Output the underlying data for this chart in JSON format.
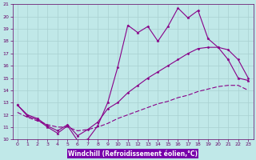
{
  "title": "",
  "xlabel": "Windchill (Refroidissement éolien,°C)",
  "ylabel": "",
  "background_color": "#c0e8e8",
  "grid_color": "#a8d0d0",
  "line_color": "#880088",
  "label_bar_color": "#7700aa",
  "label_text_color": "#ffffff",
  "tick_color": "#660066",
  "xlim": [
    -0.5,
    23.5
  ],
  "ylim": [
    10,
    21
  ],
  "xticks": [
    0,
    1,
    2,
    3,
    4,
    5,
    6,
    7,
    8,
    9,
    10,
    11,
    12,
    13,
    14,
    15,
    16,
    17,
    18,
    19,
    20,
    21,
    22,
    23
  ],
  "yticks": [
    10,
    11,
    12,
    13,
    14,
    15,
    16,
    17,
    18,
    19,
    20,
    21
  ],
  "x": [
    0,
    1,
    2,
    3,
    4,
    5,
    6,
    7,
    8,
    9,
    10,
    11,
    12,
    13,
    14,
    15,
    16,
    17,
    18,
    19,
    20,
    21,
    22,
    23
  ],
  "line1": [
    12.8,
    11.9,
    11.6,
    11.0,
    10.5,
    11.1,
    9.9,
    10.0,
    11.1,
    13.0,
    15.9,
    19.3,
    18.7,
    19.2,
    18.0,
    19.2,
    20.7,
    19.9,
    20.5,
    18.2,
    17.5,
    16.5,
    15.0,
    14.8
  ],
  "line2": [
    12.8,
    12.0,
    11.7,
    11.1,
    10.7,
    11.2,
    10.3,
    10.8,
    11.4,
    12.5,
    13.0,
    13.8,
    14.4,
    15.0,
    15.5,
    16.0,
    16.5,
    17.0,
    17.4,
    17.5,
    17.5,
    17.3,
    16.5,
    15.0
  ],
  "line3": [
    12.2,
    11.8,
    11.5,
    11.2,
    11.0,
    11.0,
    10.7,
    10.8,
    11.0,
    11.3,
    11.7,
    12.0,
    12.3,
    12.6,
    12.9,
    13.1,
    13.4,
    13.6,
    13.9,
    14.1,
    14.3,
    14.4,
    14.4,
    14.0
  ]
}
